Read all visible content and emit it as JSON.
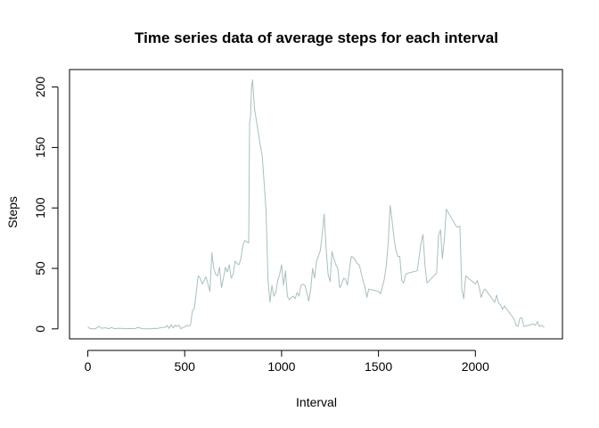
{
  "chart_data": {
    "type": "line",
    "title": "Time series data of average steps for each interval",
    "xlabel": "Interval",
    "ylabel": "Steps",
    "xlim": [
      -94.4,
      2449.4
    ],
    "ylim": [
      -8.24,
      214.44
    ],
    "x_ticks": [
      0,
      500,
      1000,
      1500,
      2000
    ],
    "y_ticks": [
      0,
      50,
      100,
      150,
      200
    ],
    "grid": false,
    "legend": "none",
    "line_color": "#a9bfbf",
    "series": [
      {
        "x": [
          0,
          10,
          20,
          30,
          40,
          55,
          70,
          90,
          110,
          120,
          140,
          160,
          180,
          200,
          220,
          240,
          260,
          280,
          300,
          320,
          340,
          360,
          380,
          400,
          410,
          420,
          430,
          440,
          450,
          460,
          470,
          480,
          490,
          500,
          510,
          520,
          530,
          540,
          550,
          560,
          570,
          580,
          590,
          600,
          610,
          620,
          630,
          640,
          650,
          660,
          670,
          680,
          690,
          700,
          710,
          720,
          730,
          740,
          750,
          760,
          770,
          780,
          790,
          800,
          810,
          820,
          830,
          835,
          840,
          845,
          850,
          860,
          870,
          880,
          890,
          900,
          910,
          920,
          930,
          940,
          950,
          960,
          970,
          980,
          990,
          1000,
          1010,
          1020,
          1030,
          1040,
          1050,
          1060,
          1070,
          1080,
          1090,
          1100,
          1110,
          1120,
          1130,
          1140,
          1150,
          1160,
          1170,
          1180,
          1190,
          1200,
          1210,
          1220,
          1230,
          1240,
          1250,
          1260,
          1270,
          1280,
          1290,
          1300,
          1310,
          1320,
          1330,
          1340,
          1350,
          1360,
          1370,
          1380,
          1390,
          1400,
          1410,
          1420,
          1430,
          1440,
          1450,
          1500,
          1510,
          1520,
          1530,
          1540,
          1550,
          1560,
          1570,
          1580,
          1590,
          1600,
          1610,
          1620,
          1630,
          1640,
          1650,
          1700,
          1710,
          1720,
          1730,
          1740,
          1750,
          1800,
          1810,
          1820,
          1830,
          1840,
          1850,
          1900,
          1910,
          1920,
          1930,
          1940,
          1950,
          2000,
          2010,
          2020,
          2030,
          2040,
          2050,
          2100,
          2110,
          2120,
          2130,
          2140,
          2150,
          2200,
          2210,
          2220,
          2230,
          2240,
          2250,
          2300,
          2310,
          2320,
          2330,
          2340,
          2350,
          2355
        ],
        "y": [
          1.7,
          0.3,
          0.1,
          0.2,
          0.1,
          2.1,
          0.5,
          0.9,
          0.2,
          1.1,
          0.2,
          0.5,
          0.3,
          0,
          0.3,
          0,
          1.3,
          0.2,
          0.1,
          0,
          0.4,
          0.3,
          1.1,
          1.3,
          2.8,
          0.4,
          3.5,
          0.8,
          3,
          2.1,
          3,
          0,
          1.2,
          1.6,
          3,
          2.3,
          3.1,
          15,
          17,
          31,
          44,
          42,
          37,
          40,
          43,
          37,
          31,
          63,
          50,
          45,
          44,
          51,
          34,
          42,
          51,
          47,
          53,
          42,
          45,
          56,
          54,
          53,
          58,
          69,
          73,
          72,
          71,
          170,
          177,
          200,
          206,
          182,
          172,
          162,
          152,
          143,
          121,
          97,
          40,
          22,
          36,
          27,
          30,
          40,
          45,
          53,
          36,
          48,
          27,
          24,
          26,
          27,
          25,
          30,
          27,
          36,
          37,
          36,
          30,
          23,
          32,
          50,
          42,
          56,
          60,
          65,
          79,
          95,
          66,
          45,
          39,
          64,
          58,
          53,
          50,
          34,
          37,
          42,
          41,
          36,
          49,
          60,
          59,
          57,
          54,
          53,
          47,
          40,
          35,
          26,
          33,
          31,
          29,
          35,
          41,
          52,
          71,
          102,
          90,
          75,
          65,
          60,
          60,
          40,
          38,
          45,
          46,
          48,
          60,
          71,
          78,
          52,
          38,
          46,
          77,
          82,
          58,
          74,
          99,
          85,
          84,
          85,
          33,
          25,
          44,
          37,
          40,
          34,
          26,
          31,
          33,
          22,
          28,
          21,
          20,
          16,
          19,
          8,
          3,
          2,
          9,
          9,
          2,
          4,
          3,
          6,
          2,
          3,
          2,
          1
        ],
        "y_markers_note": ""
      }
    ]
  }
}
